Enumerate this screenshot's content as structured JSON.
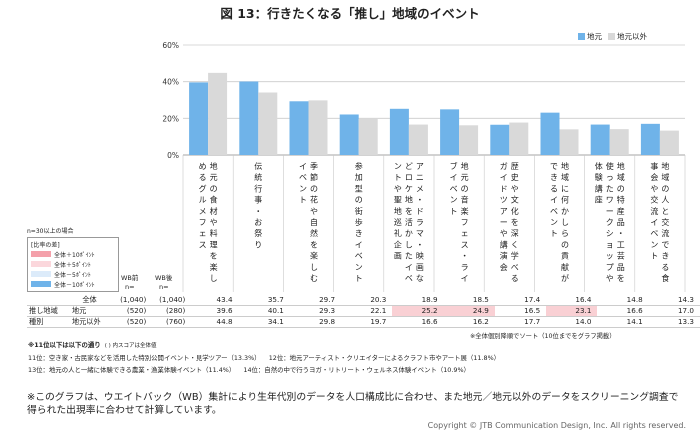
{
  "title": "図 13：行きたくなる「推し」地域のイベント",
  "colors": {
    "local": "#6fb3e9",
    "nonlocal": "#d9d9d9",
    "grid": "#cccccc",
    "hl_plus10": "#f4a0aa",
    "hl_plus5": "#fbd7dc",
    "hl_minus5": "#dcebfa",
    "hl_minus10": "#6fb3e9"
  },
  "chart_data": {
    "type": "bar",
    "title": "図 13：行きたくなる「推し」地域のイベント",
    "ylim": [
      0,
      60
    ],
    "yticks": [
      "0%",
      "20%",
      "40%",
      "60%"
    ],
    "grid": true,
    "legend_position": "top-right",
    "categories": [
      "地元の食材や料理を楽しめるグルメフェス",
      "伝統行事・お祭り",
      "季節の花や自然を楽しむイベント",
      "参加型の街歩きイベント",
      "アニメ・ドラマ・映画などロケ地を活かしたイベントや聖地巡礼企画",
      "地元の音楽フェス・ライブイベント",
      "歴史や文化を深く学べるガイドツアーや講演会",
      "地域に何かしらの貢献ができるイベント",
      "地域の特産品・工芸品を使ったワークショップや体験講座",
      "地域の人と交流できる食事会や交流イベント"
    ],
    "series": [
      {
        "name": "地元",
        "values": [
          39.6,
          40.1,
          29.3,
          22.1,
          25.2,
          24.9,
          16.5,
          23.1,
          16.6,
          17.0
        ]
      },
      {
        "name": "地元以外",
        "values": [
          44.8,
          34.1,
          29.8,
          19.7,
          16.6,
          16.2,
          17.7,
          14.0,
          14.1,
          13.3
        ]
      }
    ]
  },
  "key": {
    "cond": "n=30以上の場合",
    "title": "[比率の差]",
    "items": [
      "全体＋10ﾎﾟｲﾝﾄ",
      "全体＋5ﾎﾟｲﾝﾄ",
      "全体－5ﾎﾟｲﾝﾄ",
      "全体－10ﾎﾟｲﾝﾄ"
    ]
  },
  "table": {
    "wb_before": "WB前",
    "wb_after": "WB後",
    "n": "n=",
    "rows": [
      {
        "g": "",
        "label": "全体",
        "n1": "(1,040)",
        "n2": "(1,040)",
        "v": [
          "43.4",
          "35.7",
          "29.7",
          "20.3",
          "18.9",
          "18.5",
          "17.4",
          "16.4",
          "14.8",
          "14.3"
        ]
      },
      {
        "g": "推し地域",
        "label": "地元",
        "n1": "(520)",
        "n2": "(280)",
        "v": [
          "39.6",
          "40.1",
          "29.3",
          "22.1",
          "25.2",
          "24.9",
          "16.5",
          "23.1",
          "16.6",
          "17.0"
        ]
      },
      {
        "g": "種別",
        "label": "地元以外",
        "n1": "(520)",
        "n2": "(760)",
        "v": [
          "44.8",
          "34.1",
          "29.8",
          "19.7",
          "16.6",
          "16.2",
          "17.7",
          "14.0",
          "14.1",
          "13.3"
        ]
      }
    ],
    "highlight": [
      [
        1,
        4
      ],
      [
        1,
        5
      ],
      [
        1,
        7
      ]
    ]
  },
  "sort_note": "※全体個別降順でソート（10位までをグラフ掲載）",
  "minor": {
    "heading": "※11位以下は以下の通り",
    "heading_note": "( ) 内スコアは全体値",
    "l1a": "11位：空き家・古民家などを活用した特別公開イベント・見学ツアー（13.3%）",
    "l1b": "12位：地元アーティスト・クリエイターによるクラフト市やアート展（11.8%）",
    "l2a": "13位：地元の人と一緒に体験できる農業・漁業体験イベント（11.4%）",
    "l2b": "14位：自然の中で行うヨガ・リトリート・ウェルネス体験イベント（10.9%）"
  },
  "footnote": "※このグラフは、ウエイトバック（WB）集計により生年代別のデータを人口構成比に合わせ、また地元／地元以外のデータをスクリーニング調査で得られた出現率に合わせて計算しています。",
  "copyright": "Copyright © JTB Communication Design, Inc. All rights reserved."
}
